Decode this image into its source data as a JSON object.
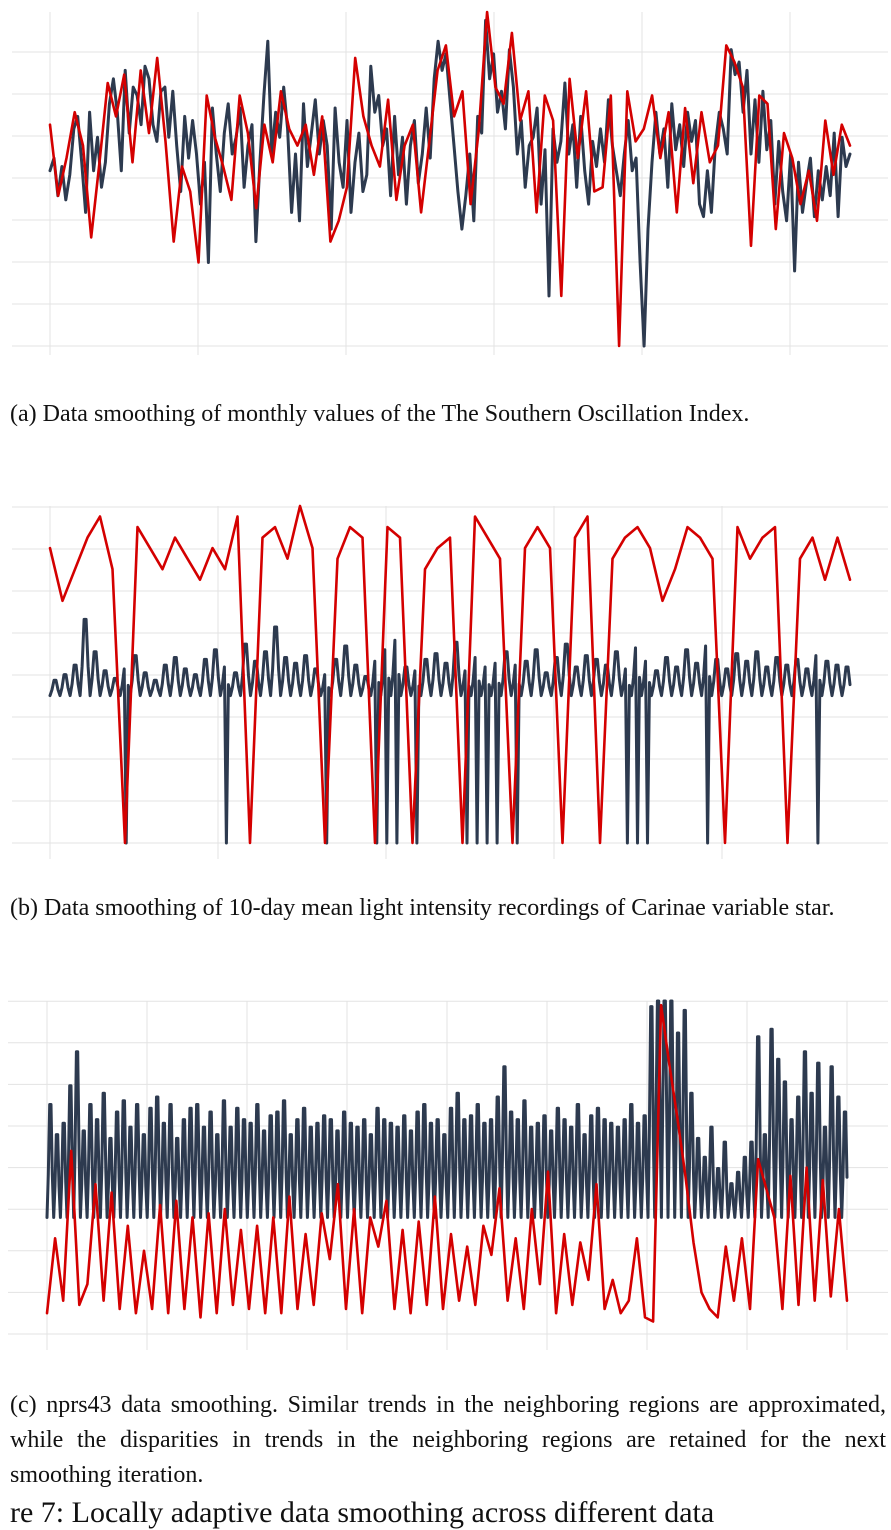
{
  "figure": {
    "caption_a": "(a) Data smoothing of monthly values of the The Southern Oscillation Index.",
    "caption_b": "(b) Data smoothing of 10-day mean light intensity recordings of Carinae variable star.",
    "caption_c": "(c) nprs43 data smoothing. Similar trends in the neighboring regions are approximated, while the disparities in trends in the neighboring regions are retained for the next smoothing iteration.",
    "footer_fragment": "re 7: Locally adaptive data smoothing across different data"
  },
  "colors": {
    "original": "#2d3a4f",
    "smoothed": "#d40000",
    "grid": "#e3e3e3"
  },
  "chart_data": [
    {
      "type": "line",
      "ylim": [
        -4,
        4
      ],
      "xlim": [
        0,
        1
      ],
      "grid": true,
      "series": [
        {
          "values": [
            0.2,
            0.5,
            -0.4,
            0.3,
            -0.5,
            0.1,
            1.2,
            1.5,
            0.4,
            -0.8,
            1.6,
            0.2,
            1.0,
            -0.2,
            0.4,
            1.8,
            2.4,
            1.6,
            0.2,
            2.6,
            1.1,
            2.2,
            2.0,
            1.3,
            2.7,
            2.4,
            1.3,
            0.9,
            2.1,
            2.2,
            1.0,
            2.1,
            0.8,
            -0.3,
            1.5,
            0.5,
            1.4,
            0.6,
            -0.6,
            0.4,
            -2.0,
            1.7,
            0.6,
            -0.3,
            1.1,
            1.8,
            0.6,
            1.0,
            1.7,
            -0.2,
            0.8,
            1.3,
            -1.5,
            0.4,
            2.0,
            3.3,
            0.6,
            1.6,
            1.0,
            2.2,
            1.2,
            -0.8,
            0.6,
            -1.0,
            1.8,
            0.3,
            1.1,
            1.9,
            0.6,
            1.4,
            0.8,
            -1.2,
            1.7,
            0.4,
            -0.2,
            1.4,
            -0.8,
            0.4,
            1.1,
            -0.3,
            0.1,
            2.7,
            1.6,
            2.0,
            0.8,
            1.2,
            -0.4,
            1.5,
            0.1,
            1.0,
            -0.6,
            0.8,
            1.4,
            -0.1,
            0.6,
            1.7,
            0.5,
            2.4,
            3.3,
            2.6,
            3.0,
            1.9,
            0.8,
            -0.3,
            -1.2,
            -0.4,
            0.6,
            -1.0,
            1.5,
            1.1,
            3.8,
            2.4,
            3.0,
            1.6,
            2.1,
            1.2,
            3.1,
            2.2,
            0.6,
            1.4,
            -0.2,
            0.8,
            1.0,
            1.7,
            -0.6,
            0.7,
            -2.8,
            1.2,
            0.4,
            0.9,
            2.3,
            0.6,
            1.3,
            -0.2,
            1.5,
            0.2,
            -0.6,
            0.9,
            0.3,
            1.2,
            0.4,
            1.9,
            0.8,
            0.2,
            -0.4,
            0.6,
            1.4,
            0.2,
            0.5,
            -2.0,
            -4.0,
            -1.2,
            0.4,
            1.6,
            0.6,
            1.2,
            -0.2,
            1.8,
            0.7,
            1.3,
            0.3,
            1.6,
            0.9,
            1.4,
            -0.6,
            -0.9,
            0.2,
            -0.8,
            0.8,
            1.6,
            1.2,
            0.6,
            3.1,
            2.5,
            2.8,
            1.6,
            2.6,
            0.6,
            1.9,
            0.4,
            2.1,
            0.7,
            1.4,
            -0.6,
            0.9,
            -0.3,
            -1.0,
            0.6,
            -2.2,
            0.4,
            -0.8,
            -0.1,
            0.5,
            -0.9,
            0.2,
            -0.5,
            0.3,
            -0.4,
            1.1,
            -0.9,
            1.0,
            0.3,
            0.6
          ]
        },
        {
          "values": [
            1.3,
            -0.4,
            0.5,
            1.6,
            0.8,
            -1.4,
            0.4,
            2.3,
            1.5,
            2.5,
            0.4,
            2.6,
            1.1,
            2.9,
            0.9,
            -1.5,
            0.3,
            -0.3,
            -2.0,
            2.0,
            1.0,
            0.3,
            -0.5,
            2.0,
            1.1,
            -0.7,
            1.3,
            0.4,
            2.1,
            1.2,
            0.8,
            1.3,
            0.1,
            1.5,
            -1.5,
            -1.0,
            -0.2,
            2.9,
            1.5,
            0.8,
            0.3,
            1.9,
            -0.5,
            0.8,
            1.3,
            -0.8,
            0.9,
            2.6,
            3.2,
            1.5,
            2.1,
            -0.6,
            1.2,
            4.0,
            2.2,
            1.8,
            3.5,
            1.4,
            2.1,
            -0.8,
            2.0,
            1.4,
            -2.8,
            2.4,
            0.5,
            2.1,
            -0.3,
            -0.2,
            2.0,
            -4.0,
            2.1,
            0.9,
            1.2,
            2.0,
            0.5,
            1.6,
            -0.8,
            1.7,
            -0.1,
            1.6,
            0.4,
            0.8,
            3.2,
            2.8,
            2.2,
            -1.6,
            2.0,
            1.8,
            -1.2,
            1.1,
            0.5,
            -0.6,
            0.2,
            -1.0,
            1.4,
            0.1,
            1.3,
            0.8
          ]
        }
      ]
    },
    {
      "type": "line",
      "ylim": [
        -12,
        4
      ],
      "xlim": [
        0,
        1
      ],
      "grid": true,
      "series": [
        {
          "cycles": 80,
          "amplitudes": [
            0.8,
            1.1,
            1.6,
            4.0,
            2.3,
            1.3,
            0.9,
            1.4,
            2.1,
            1.2,
            0.8,
            1.6,
            2.0,
            1.4,
            1.1,
            1.9,
            2.4,
            1.5,
            1.2,
            2.7,
            1.8,
            2.3,
            3.6,
            2.0,
            1.7,
            2.1,
            1.4,
            1.1,
            1.9,
            2.6,
            1.6,
            1.0,
            1.8,
            2.4,
            2.9,
            1.5,
            1.3,
            1.9,
            2.2,
            1.7,
            2.8,
            1.3,
            2.0,
            1.5,
            1.7,
            2.3,
            1.6,
            1.8,
            2.4,
            1.2,
            2.0,
            2.7,
            1.5,
            2.1,
            1.9,
            1.6,
            2.3,
            1.4,
            2.5,
            1.8,
            1.3,
            2.0,
            1.5,
            2.4,
            1.7,
            2.6,
            1.9,
            1.4,
            2.2,
            1.8,
            2.3,
            1.5,
            2.0,
            1.6,
            1.9,
            1.4,
            2.1,
            1.8,
            1.6,
            1.5
          ],
          "dropouts": [
            7,
            17,
            27,
            32,
            33,
            34,
            36,
            41,
            42,
            43,
            44,
            46,
            57,
            58,
            59,
            65,
            76,
            86,
            87
          ]
        },
        {
          "values": [
            2.0,
            -0.5,
            1.0,
            2.5,
            3.5,
            1.0,
            -12,
            3.0,
            2.0,
            1.0,
            2.5,
            1.5,
            0.5,
            2.0,
            1.0,
            3.5,
            -12,
            2.5,
            3.0,
            1.5,
            4.0,
            2.0,
            -12,
            1.5,
            3.0,
            2.5,
            -12,
            3.0,
            2.5,
            -12,
            1.0,
            2.0,
            2.5,
            -12,
            3.5,
            2.5,
            1.5,
            -12,
            2.0,
            3.0,
            2.0,
            -12,
            2.5,
            3.5,
            -12,
            1.5,
            2.5,
            3.0,
            2.0,
            -0.5,
            1.0,
            3.0,
            2.5,
            1.5,
            -12,
            3.0,
            1.5,
            2.5,
            3.0,
            -12,
            1.5,
            2.5,
            0.5,
            2.5,
            0.5
          ]
        }
      ]
    },
    {
      "type": "line",
      "ylim": [
        0,
        8
      ],
      "xlim": [
        0,
        1
      ],
      "grid": true,
      "series": [
        {
          "cycles": 120,
          "amplitudes": [
            3.0,
            2.2,
            2.5,
            3.5,
            4.4,
            2.3,
            3.0,
            2.6,
            3.3,
            2.1,
            2.8,
            3.1,
            2.4,
            3.0,
            2.2,
            2.9,
            3.2,
            2.5,
            3.0,
            2.1,
            2.6,
            2.9,
            3.0,
            2.4,
            2.8,
            2.2,
            3.1,
            2.4,
            2.9,
            2.6,
            2.5,
            3.0,
            2.3,
            2.7,
            2.8,
            3.1,
            2.2,
            2.6,
            2.9,
            2.4,
            2.5,
            2.7,
            2.6,
            2.3,
            2.8,
            2.5,
            2.4,
            2.6,
            2.2,
            2.9,
            2.6,
            2.5,
            2.4,
            2.7,
            2.3,
            2.8,
            3.0,
            2.5,
            2.6,
            2.2,
            2.9,
            3.3,
            2.6,
            2.7,
            3.0,
            2.5,
            2.6,
            3.2,
            4.0,
            2.8,
            2.6,
            3.1,
            2.4,
            2.5,
            2.7,
            2.3,
            2.9,
            2.6,
            2.4,
            3.0,
            2.2,
            2.7,
            2.9,
            2.6,
            2.5,
            2.4,
            2.6,
            3.0,
            2.5,
            2.7,
            5.6,
            7.0,
            7.5,
            6.2,
            4.9,
            5.5,
            3.3,
            2.1,
            1.6,
            2.4,
            1.3,
            2.0,
            0.9,
            1.2,
            1.6,
            2.0,
            4.8,
            2.2,
            5.0,
            4.2,
            3.6,
            2.6,
            3.2,
            4.4,
            3.3,
            4.1,
            2.4,
            4.0,
            3.2,
            2.8
          ]
        },
        {
          "values": [
            0.5,
            2.3,
            0.8,
            4.4,
            0.7,
            1.2,
            3.6,
            0.8,
            3.4,
            0.6,
            2.6,
            0.5,
            2.0,
            0.6,
            3.1,
            0.5,
            3.2,
            0.6,
            2.8,
            0.4,
            2.9,
            0.5,
            3.0,
            0.7,
            2.5,
            0.6,
            2.6,
            0.5,
            2.8,
            0.5,
            3.3,
            0.6,
            2.4,
            0.7,
            2.9,
            1.8,
            3.6,
            0.6,
            3.0,
            0.5,
            2.8,
            2.1,
            3.2,
            0.6,
            2.5,
            0.5,
            2.7,
            0.7,
            3.3,
            0.6,
            2.4,
            0.8,
            2.1,
            0.7,
            2.6,
            1.9,
            3.5,
            0.8,
            2.3,
            0.6,
            3.0,
            1.2,
            3.9,
            0.5,
            2.4,
            0.7,
            2.2,
            1.3,
            3.6,
            0.6,
            1.3,
            0.5,
            0.8,
            2.3,
            0.4,
            0.3,
            7.9,
            6.5,
            5.2,
            3.8,
            2.2,
            1.0,
            0.6,
            0.4,
            2.1,
            0.8,
            2.3,
            0.6,
            4.2,
            3.5,
            2.8,
            0.6,
            3.8,
            0.7,
            4.0,
            0.8,
            3.7,
            0.9,
            3.0,
            0.8
          ]
        }
      ]
    }
  ]
}
